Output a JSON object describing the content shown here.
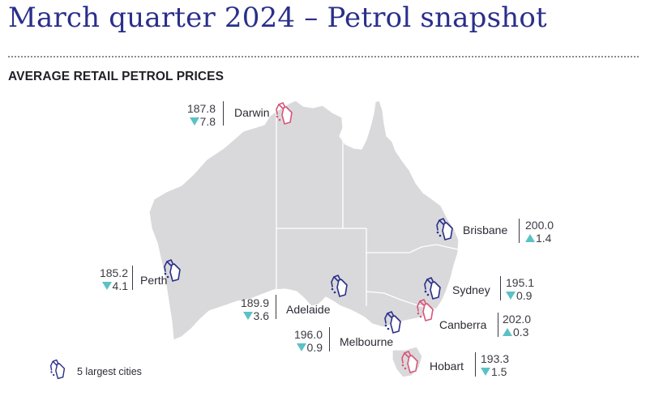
{
  "title": "March quarter 2024 – Petrol snapshot",
  "subtitle": "AVERAGE RETAIL PETROL PRICES",
  "legend": {
    "label": "5 largest cities",
    "icon": "fuel-pump-icon",
    "icon_color": "#2a2f8a"
  },
  "colors": {
    "large_city_pump": "#2a2f8a",
    "other_city_pump": "#d9557a",
    "change_arrow": "#5cc1c4",
    "map_fill": "#d9d9db"
  },
  "cities": [
    {
      "name": "Darwin",
      "price": "187.8",
      "direction": "down",
      "change": "7.8",
      "largest": false
    },
    {
      "name": "Brisbane",
      "price": "200.0",
      "direction": "up",
      "change": "1.4",
      "largest": true
    },
    {
      "name": "Perth",
      "price": "185.2",
      "direction": "down",
      "change": "4.1",
      "largest": true
    },
    {
      "name": "Sydney",
      "price": "195.1",
      "direction": "down",
      "change": "0.9",
      "largest": true
    },
    {
      "name": "Adelaide",
      "price": "189.9",
      "direction": "down",
      "change": "3.6",
      "largest": true
    },
    {
      "name": "Canberra",
      "price": "202.0",
      "direction": "up",
      "change": "0.3",
      "largest": false
    },
    {
      "name": "Melbourne",
      "price": "196.0",
      "direction": "down",
      "change": "0.9",
      "largest": true
    },
    {
      "name": "Hobart",
      "price": "193.3",
      "direction": "down",
      "change": "1.5",
      "largest": false
    }
  ]
}
